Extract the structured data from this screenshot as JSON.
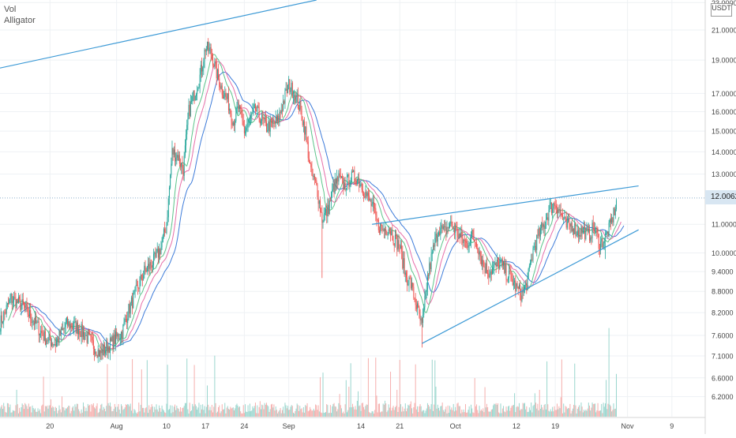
{
  "indicators": {
    "volume_label": "Vol",
    "alligator_label": "Alligator"
  },
  "price_axis": {
    "currency": "USDT",
    "ticks": [
      "23.0000",
      "21.0000",
      "19.0000",
      "17.0000",
      "16.0000",
      "15.0000",
      "14.0000",
      "13.0000",
      "11.0000",
      "10.0000",
      "9.4000",
      "8.8000",
      "8.2000",
      "7.6000",
      "7.1000",
      "6.6000",
      "6.2000"
    ],
    "last_price_label": "12.0062"
  },
  "colors": {
    "up": "#26a69a",
    "down": "#ef5350",
    "vol_up": "#8fd1c9",
    "vol_down": "#f4a6a4",
    "trendline": "#3d9ad6",
    "alligator_jaw": "#3d7bd9",
    "alligator_teeth": "#e76fa9",
    "alligator_lips": "#5cc48a",
    "grid": "#eef1f4",
    "last_price_line": "#8cb0cd"
  },
  "chart_data": {
    "type": "candlestick",
    "scale": "log",
    "ylim": [
      5.8,
      23.2
    ],
    "x_start_date": "2020-07-11",
    "x_end_date": "2020-11-15",
    "x_tick_labels": [
      {
        "date": "2020-07-20",
        "label": "20"
      },
      {
        "date": "2020-08-01",
        "label": "Aug"
      },
      {
        "date": "2020-08-10",
        "label": "10"
      },
      {
        "date": "2020-08-17",
        "label": "17"
      },
      {
        "date": "2020-08-24",
        "label": "24"
      },
      {
        "date": "2020-09-01",
        "label": "Sep"
      },
      {
        "date": "2020-09-14",
        "label": "14"
      },
      {
        "date": "2020-09-21",
        "label": "21"
      },
      {
        "date": "2020-10-01",
        "label": "Oct"
      },
      {
        "date": "2020-10-12",
        "label": "12"
      },
      {
        "date": "2020-10-19",
        "label": "19"
      },
      {
        "date": "2020-11-01",
        "label": "Nov"
      },
      {
        "date": "2020-11-09",
        "label": "9"
      }
    ],
    "last_price": 12.0062,
    "price_path": [
      [
        "2020-07-11",
        7.9
      ],
      [
        "2020-07-13",
        8.6
      ],
      [
        "2020-07-15",
        8.4
      ],
      [
        "2020-07-17",
        8.0
      ],
      [
        "2020-07-19",
        7.55
      ],
      [
        "2020-07-21",
        7.4
      ],
      [
        "2020-07-23",
        7.9
      ],
      [
        "2020-07-25",
        7.8
      ],
      [
        "2020-07-27",
        7.5
      ],
      [
        "2020-07-29",
        7.15
      ],
      [
        "2020-07-31",
        7.4
      ],
      [
        "2020-08-02",
        7.7
      ],
      [
        "2020-08-03",
        8.2
      ],
      [
        "2020-08-05",
        9.0
      ],
      [
        "2020-08-06",
        9.4
      ],
      [
        "2020-08-08",
        9.8
      ],
      [
        "2020-08-09",
        10.2
      ],
      [
        "2020-08-10",
        11.0
      ],
      [
        "2020-08-11",
        14.0
      ],
      [
        "2020-08-12",
        13.8
      ],
      [
        "2020-08-13",
        13.2
      ],
      [
        "2020-08-14",
        16.0
      ],
      [
        "2020-08-15",
        17.0
      ],
      [
        "2020-08-16",
        18.0
      ],
      [
        "2020-08-17",
        19.8
      ],
      [
        "2020-08-18",
        19.5
      ],
      [
        "2020-08-19",
        18.2
      ],
      [
        "2020-08-20",
        17.2
      ],
      [
        "2020-08-21",
        16.6
      ],
      [
        "2020-08-22",
        15.5
      ],
      [
        "2020-08-23",
        16.2
      ],
      [
        "2020-08-24",
        15.0
      ],
      [
        "2020-08-26",
        16.1
      ],
      [
        "2020-08-28",
        15.2
      ],
      [
        "2020-08-30",
        15.5
      ],
      [
        "2020-08-31",
        16.5
      ],
      [
        "2020-09-01",
        17.5
      ],
      [
        "2020-09-02",
        17.0
      ],
      [
        "2020-09-03",
        16.2
      ],
      [
        "2020-09-04",
        15.0
      ],
      [
        "2020-09-05",
        13.0
      ],
      [
        "2020-09-06",
        12.5
      ],
      [
        "2020-09-07",
        11.2
      ],
      [
        "2020-09-08",
        11.5
      ],
      [
        "2020-09-09",
        12.4
      ],
      [
        "2020-09-10",
        12.8
      ],
      [
        "2020-09-11",
        12.5
      ],
      [
        "2020-09-12",
        12.8
      ],
      [
        "2020-09-13",
        12.9
      ],
      [
        "2020-09-14",
        12.6
      ],
      [
        "2020-09-15",
        12.1
      ],
      [
        "2020-09-16",
        11.7
      ],
      [
        "2020-09-17",
        11.0
      ],
      [
        "2020-09-18",
        10.8
      ],
      [
        "2020-09-19",
        10.9
      ],
      [
        "2020-09-20",
        10.5
      ],
      [
        "2020-09-21",
        10.2
      ],
      [
        "2020-09-22",
        9.3
      ],
      [
        "2020-09-23",
        9.0
      ],
      [
        "2020-09-24",
        8.4
      ],
      [
        "2020-09-25",
        7.8
      ],
      [
        "2020-09-26",
        9.2
      ],
      [
        "2020-09-27",
        10.1
      ],
      [
        "2020-09-28",
        10.9
      ],
      [
        "2020-09-29",
        10.7
      ],
      [
        "2020-09-30",
        11.0
      ],
      [
        "2020-10-01",
        10.8
      ],
      [
        "2020-10-02",
        10.5
      ],
      [
        "2020-10-03",
        10.3
      ],
      [
        "2020-10-04",
        10.6
      ],
      [
        "2020-10-05",
        10.3
      ],
      [
        "2020-10-06",
        9.6
      ],
      [
        "2020-10-07",
        9.4
      ],
      [
        "2020-10-08",
        9.5
      ],
      [
        "2020-10-09",
        9.7
      ],
      [
        "2020-10-10",
        9.4
      ],
      [
        "2020-10-11",
        9.2
      ],
      [
        "2020-10-12",
        8.9
      ],
      [
        "2020-10-13",
        8.7
      ],
      [
        "2020-10-14",
        9.1
      ],
      [
        "2020-10-15",
        10.1
      ],
      [
        "2020-10-16",
        10.6
      ],
      [
        "2020-10-17",
        11.0
      ],
      [
        "2020-10-18",
        11.6
      ],
      [
        "2020-10-19",
        11.8
      ],
      [
        "2020-10-20",
        11.4
      ],
      [
        "2020-10-21",
        10.9
      ],
      [
        "2020-10-22",
        11.0
      ],
      [
        "2020-10-23",
        10.7
      ],
      [
        "2020-10-24",
        10.8
      ],
      [
        "2020-10-25",
        10.6
      ],
      [
        "2020-10-26",
        10.9
      ],
      [
        "2020-10-27",
        10.3
      ],
      [
        "2020-10-28",
        10.5
      ],
      [
        "2020-10-29",
        11.0
      ],
      [
        "2020-10-30",
        11.8
      ]
    ],
    "wick_extremes": [
      {
        "date": "2020-09-07",
        "low": 9.2
      },
      {
        "date": "2020-09-25",
        "low": 7.3
      },
      {
        "date": "2020-10-28",
        "low": 9.8
      },
      {
        "date": "2020-10-30",
        "high": 12.0
      }
    ],
    "trendlines": [
      {
        "from": [
          "2020-07-11",
          18.5
        ],
        "to": [
          "2020-09-06",
          23.2
        ]
      },
      {
        "from": [
          "2020-09-16",
          11.0
        ],
        "to": [
          "2020-11-03",
          12.5
        ]
      },
      {
        "from": [
          "2020-09-25",
          7.4
        ],
        "to": [
          "2020-11-03",
          10.8
        ]
      }
    ]
  }
}
